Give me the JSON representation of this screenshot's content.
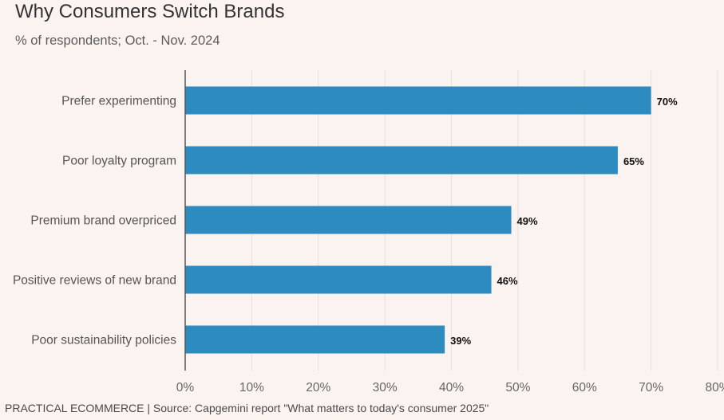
{
  "chart_data": {
    "type": "bar",
    "orientation": "horizontal",
    "title": "Why Consumers Switch Brands",
    "subtitle": "% of respondents; Oct. - Nov. 2024",
    "categories": [
      "Prefer experimenting",
      "Poor loyalty program",
      "Premium brand overpriced",
      "Positive reviews of new brand",
      "Poor sustainability policies"
    ],
    "values": [
      70,
      65,
      49,
      46,
      39
    ],
    "value_labels": [
      "70%",
      "65%",
      "49%",
      "46%",
      "39%"
    ],
    "xlim": [
      0,
      80
    ],
    "x_ticks": [
      0,
      10,
      20,
      30,
      40,
      50,
      60,
      70,
      80
    ],
    "x_tick_labels": [
      "0%",
      "10%",
      "20%",
      "30%",
      "40%",
      "50%",
      "60%",
      "70%",
      "80%"
    ],
    "grid": "vertical",
    "bar_color": "#2e8bc0",
    "grid_color": "#e8dfdb",
    "axis_color": "#555555",
    "footer": "PRACTICAL ECOMMERCE | Source: Capgemini report \"What matters to today's consumer 2025\""
  }
}
